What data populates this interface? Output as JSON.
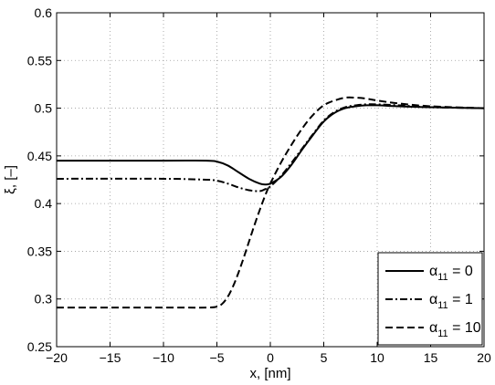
{
  "chart_data": {
    "type": "line",
    "xlabel": "x, [nm]",
    "ylabel": "ξ, [–]",
    "xlim": [
      -20,
      20
    ],
    "ylim": [
      0.25,
      0.6
    ],
    "xticks": [
      -20,
      -15,
      -10,
      -5,
      0,
      5,
      10,
      15,
      20
    ],
    "yticks": [
      0.25,
      0.3,
      0.35,
      0.4,
      0.45,
      0.5,
      0.55,
      0.6
    ],
    "xtick_labels": [
      "−20",
      "−15",
      "−10",
      "−5",
      "0",
      "5",
      "10",
      "15",
      "20"
    ],
    "ytick_labels": [
      "0.25",
      "0.3",
      "0.35",
      "0.4",
      "0.45",
      "0.5",
      "0.55",
      "0.6"
    ],
    "grid": true,
    "legend_placement": "bottom-right",
    "series": [
      {
        "name": "α11 = 0",
        "symbol": "α",
        "subscript": "11",
        "suffix": " = 0",
        "style": "solid",
        "x": [
          -20,
          -10,
          -6,
          -5,
          -4,
          -3,
          -2,
          -1,
          -0.5,
          0,
          1,
          2,
          3,
          4,
          5,
          6,
          7,
          8,
          9,
          10,
          12,
          15,
          20
        ],
        "y": [
          0.445,
          0.445,
          0.445,
          0.444,
          0.44,
          0.433,
          0.426,
          0.421,
          0.42,
          0.421,
          0.428,
          0.441,
          0.457,
          0.472,
          0.486,
          0.495,
          0.5,
          0.502,
          0.503,
          0.503,
          0.502,
          0.501,
          0.5
        ]
      },
      {
        "name": "α11 = 1",
        "symbol": "α",
        "subscript": "11",
        "suffix": " = 1",
        "style": "dashdot",
        "x": [
          -20,
          -10,
          -6,
          -5,
          -4,
          -3,
          -2,
          -1,
          -0.5,
          0,
          1,
          2,
          3,
          4,
          5,
          6,
          7,
          8,
          9,
          10,
          12,
          15,
          20
        ],
        "y": [
          0.426,
          0.426,
          0.425,
          0.424,
          0.421,
          0.417,
          0.414,
          0.413,
          0.415,
          0.418,
          0.429,
          0.443,
          0.458,
          0.473,
          0.487,
          0.496,
          0.501,
          0.503,
          0.504,
          0.504,
          0.503,
          0.501,
          0.5
        ]
      },
      {
        "name": "α11 = 10",
        "symbol": "α",
        "subscript": "11",
        "suffix": " = 10",
        "style": "dashed",
        "x": [
          -20,
          -10,
          -6,
          -5,
          -4.5,
          -4,
          -3.5,
          -3,
          -2.5,
          -2,
          -1.5,
          -1,
          -0.5,
          0,
          1,
          2,
          3,
          4,
          5,
          6,
          7,
          8,
          9,
          10,
          12,
          15,
          20
        ],
        "y": [
          0.291,
          0.291,
          0.291,
          0.292,
          0.295,
          0.302,
          0.313,
          0.327,
          0.343,
          0.36,
          0.377,
          0.393,
          0.408,
          0.421,
          0.443,
          0.462,
          0.479,
          0.493,
          0.503,
          0.508,
          0.511,
          0.511,
          0.51,
          0.508,
          0.505,
          0.502,
          0.5
        ]
      }
    ]
  }
}
